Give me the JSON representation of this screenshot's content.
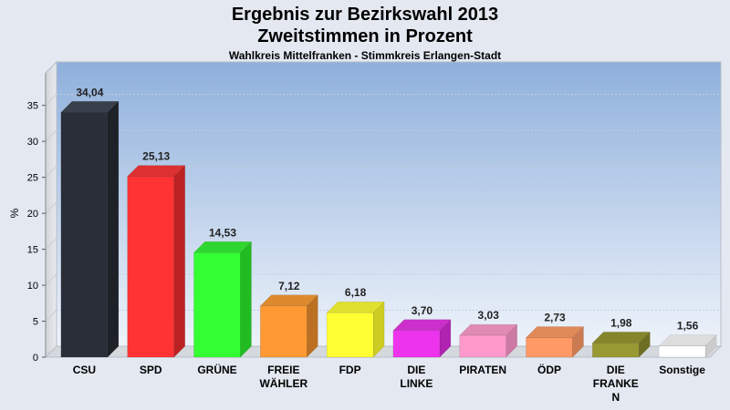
{
  "chart_data": {
    "type": "bar",
    "title": "Ergebnis zur Bezirkswahl 2013",
    "subtitle": "Zweitstimmen in Prozent",
    "caption": "Wahlkreis Mittelfranken - Stimmkreis Erlangen-Stadt",
    "ylabel": "%",
    "xlabel": "",
    "ylim": [
      0,
      38
    ],
    "yticks": [
      0,
      5,
      10,
      15,
      20,
      25,
      30,
      35
    ],
    "grid": true,
    "categories": [
      [
        "CSU"
      ],
      [
        "SPD"
      ],
      [
        "GRÜNE"
      ],
      [
        "FREIE",
        "WÄHLER"
      ],
      [
        "FDP"
      ],
      [
        "DIE",
        "LINKE"
      ],
      [
        "PIRATEN"
      ],
      [
        "ÖDP"
      ],
      [
        "DIE",
        "FRANKE",
        "N"
      ],
      [
        "Sonstige"
      ]
    ],
    "values": [
      34.04,
      25.13,
      14.53,
      7.12,
      6.18,
      3.7,
      3.03,
      2.73,
      1.98,
      1.56
    ],
    "value_labels": [
      "34,04",
      "25,13",
      "14,53",
      "7,12",
      "6,18",
      "3,70",
      "3,03",
      "2,73",
      "1,98",
      "1,56"
    ],
    "colors": [
      "#2a2e38",
      "#ff3333",
      "#33ff33",
      "#ff9933",
      "#ffff33",
      "#ee33ee",
      "#ff99cc",
      "#ff9966",
      "#999933",
      "#ffffff"
    ],
    "side_colors": [
      "#1e2128",
      "#bb2222",
      "#22bb22",
      "#bb7022",
      "#cccc22",
      "#b022b0",
      "#cc7aa3",
      "#cc7a52",
      "#6e6e22",
      "#cccccc"
    ],
    "top_colors": [
      "#3a3f4c",
      "#dd3030",
      "#2fd62f",
      "#dd8a2f",
      "#e0e02e",
      "#cc2fcc",
      "#e08ab4",
      "#e08a5a",
      "#85852c",
      "#dddddd"
    ]
  }
}
